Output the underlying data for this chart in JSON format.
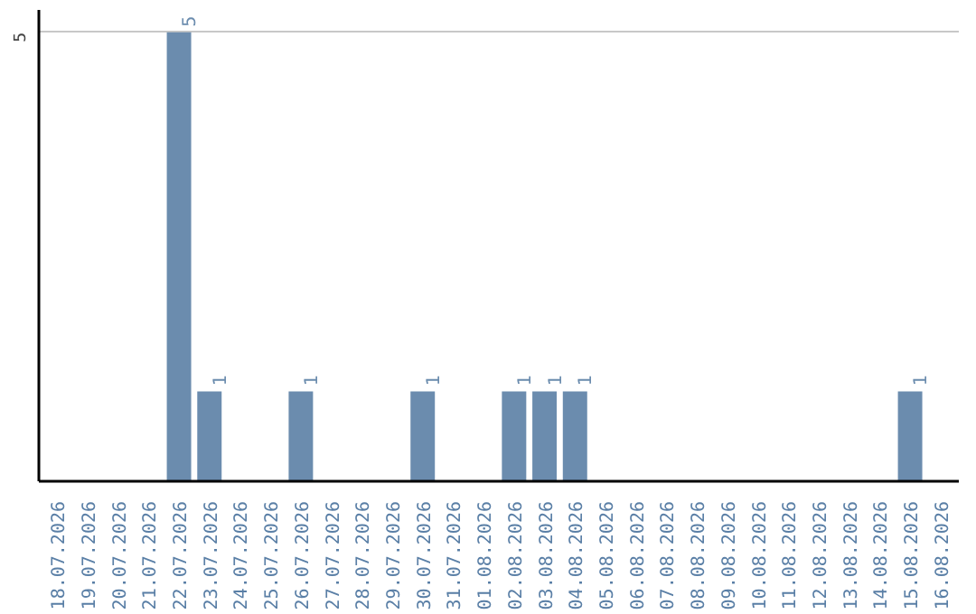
{
  "chart_data": {
    "type": "bar",
    "categories": [
      "18.07.2026",
      "19.07.2026",
      "20.07.2026",
      "21.07.2026",
      "22.07.2026",
      "23.07.2026",
      "24.07.2026",
      "25.07.2026",
      "26.07.2026",
      "27.07.2026",
      "28.07.2026",
      "29.07.2026",
      "30.07.2026",
      "31.07.2026",
      "01.08.2026",
      "02.08.2026",
      "03.08.2026",
      "04.08.2026",
      "05.08.2026",
      "06.08.2026",
      "07.08.2026",
      "08.08.2026",
      "09.08.2026",
      "10.08.2026",
      "11.08.2026",
      "12.08.2026",
      "13.08.2026",
      "14.08.2026",
      "15.08.2026",
      "16.08.2026"
    ],
    "values": [
      0,
      0,
      0,
      0,
      5,
      1,
      0,
      0,
      1,
      0,
      0,
      0,
      1,
      0,
      0,
      1,
      1,
      1,
      0,
      0,
      0,
      0,
      0,
      0,
      0,
      0,
      0,
      0,
      1,
      0
    ],
    "value_labels": [
      null,
      null,
      null,
      null,
      "5",
      "1",
      null,
      null,
      "1",
      null,
      null,
      null,
      "1",
      null,
      null,
      "1",
      "1",
      "1",
      null,
      null,
      null,
      null,
      null,
      null,
      null,
      null,
      null,
      null,
      "1",
      null
    ],
    "color": "#6b8cae",
    "ylim": [
      0,
      5.25
    ],
    "yticks": [
      5
    ],
    "grid": "y"
  }
}
